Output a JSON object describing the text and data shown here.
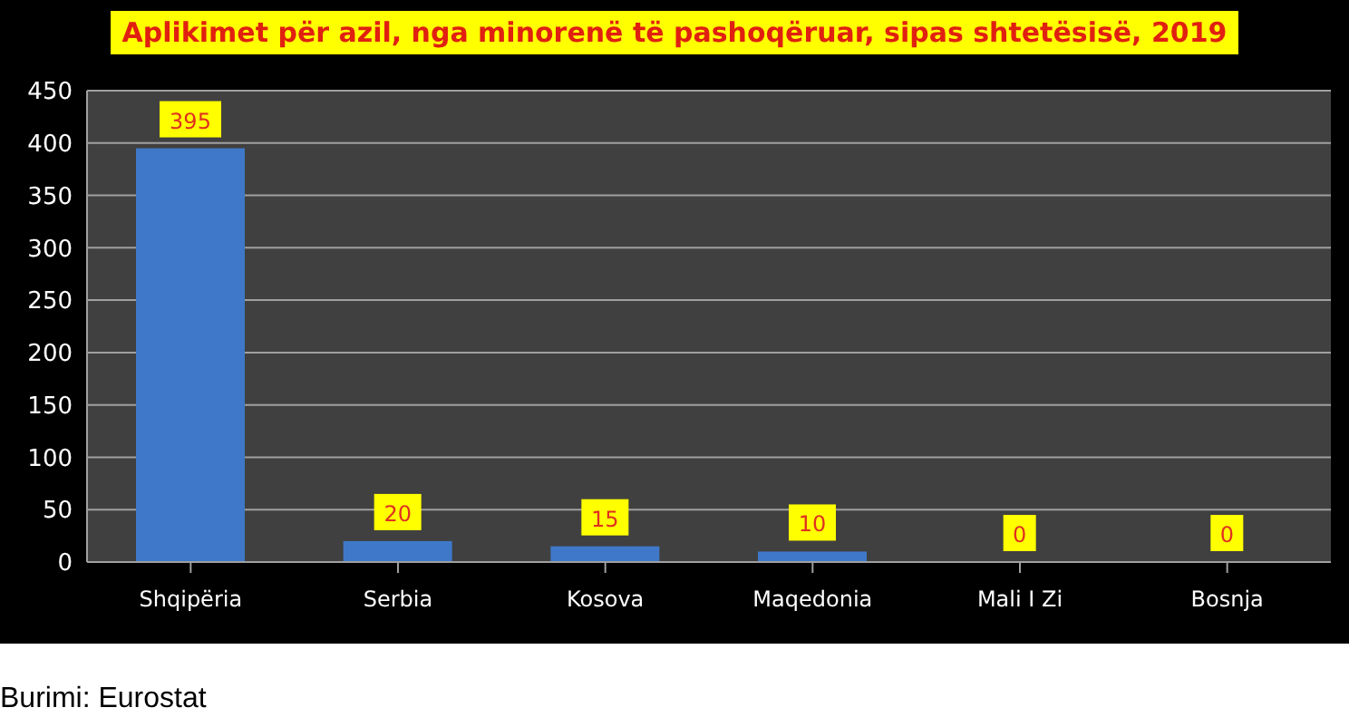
{
  "chart_data": {
    "type": "bar",
    "title": "Aplikimet për azil, nga minorenë të pashoqëruar, sipas shtetësisë, 2019",
    "categories": [
      "Shqipëria",
      "Serbia",
      "Kosova",
      "Maqedonia",
      "Mali I Zi",
      "Bosnja"
    ],
    "values": [
      395,
      20,
      15,
      10,
      0,
      0
    ],
    "color": "#3f78c8",
    "ylim": [
      0,
      450
    ],
    "yticks": [
      0,
      50,
      100,
      150,
      200,
      250,
      300,
      350,
      400,
      450
    ],
    "grid": "y",
    "data_labels": true,
    "annotations": [
      "Burimi: Eurostat"
    ]
  }
}
